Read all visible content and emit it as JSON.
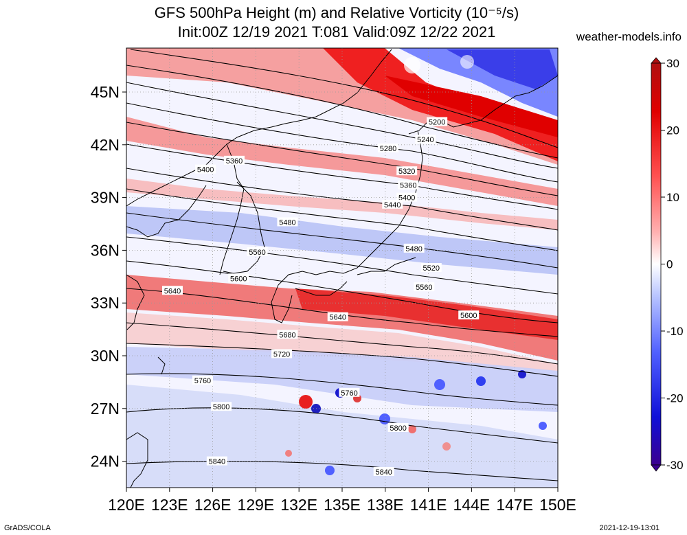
{
  "title_line1": "GFS 500hPa Height (m) and Relative Vorticity (10⁻⁵/s)",
  "title_line2": "Init:00Z 12/19 2021 T:081 Valid:09Z 12/22 2021",
  "site": "weather-models.info",
  "footer_left": "GrADS/COLA",
  "footer_right": "2021-12-19-13:01",
  "map": {
    "lon_ticks": [
      "120E",
      "123E",
      "126E",
      "129E",
      "132E",
      "135E",
      "138E",
      "141E",
      "144E",
      "147E",
      "150E"
    ],
    "lat_ticks": [
      "45N",
      "42N",
      "39N",
      "36N",
      "33N",
      "30N",
      "27N",
      "24N"
    ],
    "lon_values": [
      120,
      123,
      126,
      129,
      132,
      135,
      138,
      141,
      144,
      147,
      150
    ],
    "lat_values": [
      45,
      42,
      39,
      36,
      33,
      30,
      27,
      24
    ],
    "lon_range": [
      120,
      150
    ],
    "lat_range": [
      22.5,
      47.5
    ]
  },
  "colorbar": {
    "ticks": [
      "30",
      "20",
      "10",
      "0",
      "-10",
      "-20",
      "-30"
    ],
    "values": [
      30,
      20,
      10,
      0,
      -10,
      -20,
      -30
    ],
    "range": [
      -30,
      30
    ],
    "colors": [
      "#3a00a0",
      "#1a1aff",
      "#7f8fff",
      "#c8d2ff",
      "#ffffff",
      "#ffc8c8",
      "#ff8a8a",
      "#ff2020",
      "#c00000"
    ]
  },
  "contour_labels": [
    {
      "text": "5200",
      "lon": 141.6,
      "lat": 43.3
    },
    {
      "text": "5240",
      "lon": 140.8,
      "lat": 42.3
    },
    {
      "text": "5280",
      "lon": 138.2,
      "lat": 41.8
    },
    {
      "text": "5320",
      "lon": 139.5,
      "lat": 40.5
    },
    {
      "text": "5360",
      "lon": 127.5,
      "lat": 41.1
    },
    {
      "text": "5360",
      "lon": 139.6,
      "lat": 39.7
    },
    {
      "text": "5400",
      "lon": 125.5,
      "lat": 40.6
    },
    {
      "text": "5400",
      "lon": 139.5,
      "lat": 39.0
    },
    {
      "text": "5440",
      "lon": 138.5,
      "lat": 38.6
    },
    {
      "text": "5480",
      "lon": 131.2,
      "lat": 37.6
    },
    {
      "text": "5480",
      "lon": 140.0,
      "lat": 36.1
    },
    {
      "text": "5520",
      "lon": 141.2,
      "lat": 35.0
    },
    {
      "text": "5560",
      "lon": 129.1,
      "lat": 35.9
    },
    {
      "text": "5560",
      "lon": 140.7,
      "lat": 33.9
    },
    {
      "text": "5600",
      "lon": 127.8,
      "lat": 34.4
    },
    {
      "text": "5600",
      "lon": 143.8,
      "lat": 32.3
    },
    {
      "text": "5640",
      "lon": 123.2,
      "lat": 33.7
    },
    {
      "text": "5640",
      "lon": 134.7,
      "lat": 32.2
    },
    {
      "text": "5680",
      "lon": 131.2,
      "lat": 31.2
    },
    {
      "text": "5720",
      "lon": 130.8,
      "lat": 30.1
    },
    {
      "text": "5760",
      "lon": 125.3,
      "lat": 28.6
    },
    {
      "text": "5760",
      "lon": 135.5,
      "lat": 27.9
    },
    {
      "text": "5800",
      "lon": 126.6,
      "lat": 27.1
    },
    {
      "text": "5800",
      "lon": 138.9,
      "lat": 25.9
    },
    {
      "text": "5840",
      "lon": 126.3,
      "lat": 24.0
    },
    {
      "text": "5840",
      "lon": 137.9,
      "lat": 23.4
    }
  ]
}
